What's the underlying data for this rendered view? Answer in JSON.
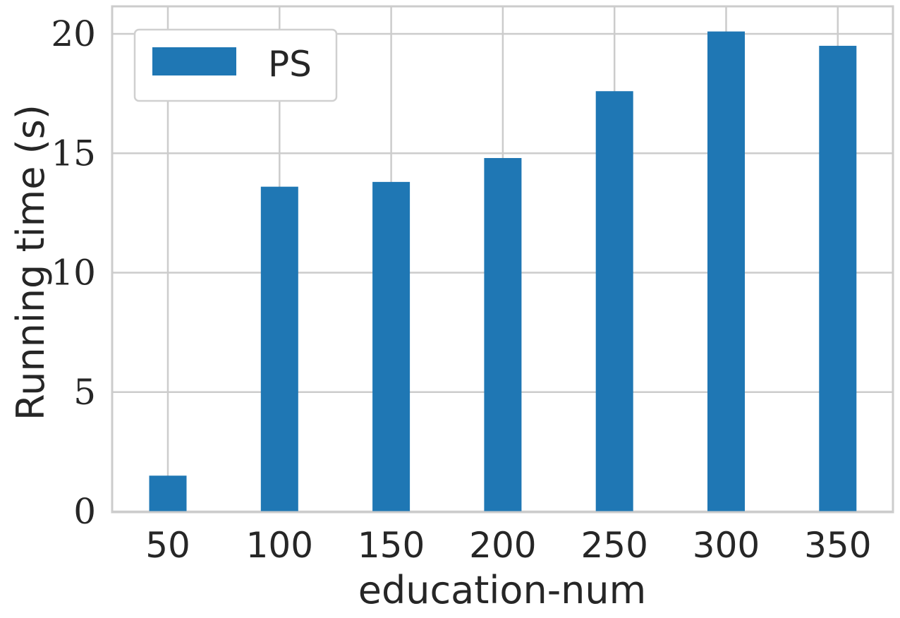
{
  "chart_data": {
    "type": "bar",
    "categories": [
      "50",
      "100",
      "150",
      "200",
      "250",
      "300",
      "350"
    ],
    "series": [
      {
        "name": "PS",
        "values": [
          1.5,
          13.6,
          13.8,
          14.8,
          17.6,
          20.1,
          19.5
        ],
        "color": "#1f77b4"
      }
    ],
    "xlabel": "education-num",
    "ylabel": "Running time (s)",
    "ylim": [
      0,
      21.1
    ],
    "yticks": [
      "0",
      "5",
      "10",
      "15",
      "20"
    ],
    "grid": true,
    "legend_position": "top-left"
  }
}
